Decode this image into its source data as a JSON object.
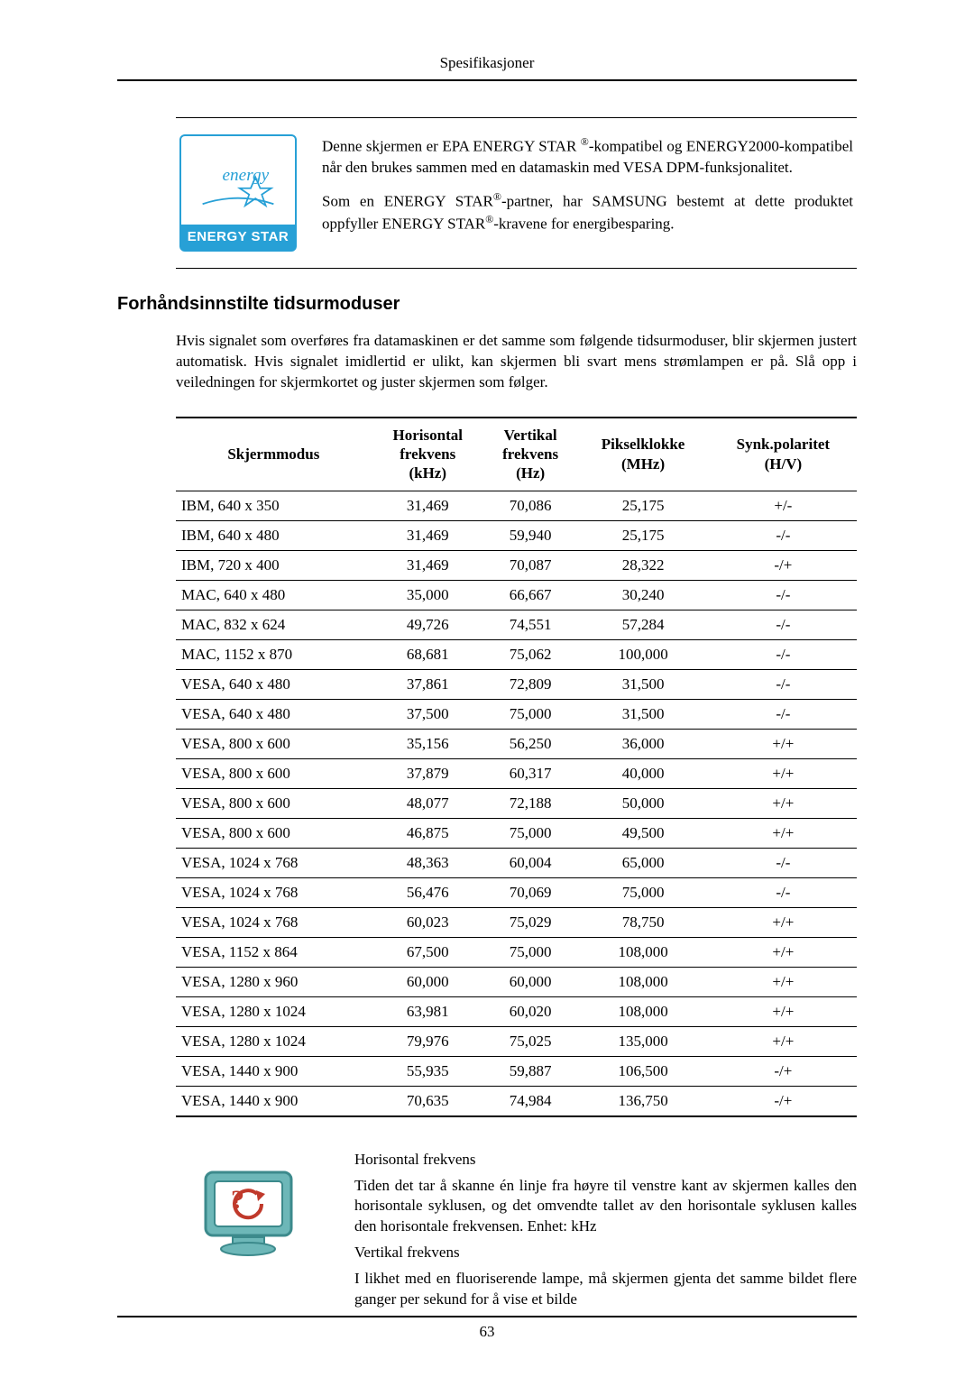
{
  "header_title": "Spesifikasjoner",
  "energy_logo_top": "energy",
  "energy_logo_bottom": "ENERGY STAR",
  "energy_paragraph1_a": "Denne skjermen er EPA ENERGY STAR ",
  "sup_r": "®",
  "energy_paragraph1_b": "-kompatibel og ENERGY2000-kompatibel når den brukes sammen med en datamaskin med VESA DPM-funksjonalitet.",
  "energy_paragraph2_a": "Som en ENERGY STAR",
  "energy_paragraph2_b": "-partner, har SAMSUNG bestemt at dette produktet oppfyller ENERGY STAR",
  "energy_paragraph2_c": "-kravene for energibesparing.",
  "section_heading": "Forhåndsinnstilte tidsurmoduser",
  "intro_text": "Hvis signalet som overføres fra datamaskinen er det samme som følgende tidsurmoduser, blir skjermen justert automatisk. Hvis signalet imidlertid er ulikt, kan skjermen bli svart mens strømlampen er på. Slå opp i veiledningen for skjermkortet og juster skjermen som følger.",
  "table": {
    "headers": {
      "c1": "Skjermmodus",
      "c2a": "Horisontal",
      "c2b": "frekvens",
      "c2c": "(kHz)",
      "c3a": "Vertikal",
      "c3b": "frekvens",
      "c3c": "(Hz)",
      "c4a": "Pikselklokke",
      "c4b": "(MHz)",
      "c5a": "Synk.polaritet",
      "c5b": "(H/V)"
    },
    "rows": [
      {
        "c1": "IBM, 640 x 350",
        "c2": "31,469",
        "c3": "70,086",
        "c4": "25,175",
        "c5": "+/-"
      },
      {
        "c1": "IBM, 640 x 480",
        "c2": "31,469",
        "c3": "59,940",
        "c4": "25,175",
        "c5": "-/-"
      },
      {
        "c1": "IBM, 720 x 400",
        "c2": "31,469",
        "c3": "70,087",
        "c4": "28,322",
        "c5": "-/+"
      },
      {
        "c1": "MAC, 640 x 480",
        "c2": "35,000",
        "c3": "66,667",
        "c4": "30,240",
        "c5": "-/-"
      },
      {
        "c1": "MAC, 832 x 624",
        "c2": "49,726",
        "c3": "74,551",
        "c4": "57,284",
        "c5": "-/-"
      },
      {
        "c1": "MAC, 1152 x 870",
        "c2": "68,681",
        "c3": "75,062",
        "c4": "100,000",
        "c5": "-/-"
      },
      {
        "c1": "VESA, 640 x 480",
        "c2": "37,861",
        "c3": "72,809",
        "c4": "31,500",
        "c5": "-/-"
      },
      {
        "c1": "VESA, 640 x 480",
        "c2": "37,500",
        "c3": "75,000",
        "c4": "31,500",
        "c5": "-/-"
      },
      {
        "c1": "VESA, 800 x 600",
        "c2": "35,156",
        "c3": "56,250",
        "c4": "36,000",
        "c5": "+/+"
      },
      {
        "c1": "VESA, 800 x 600",
        "c2": "37,879",
        "c3": "60,317",
        "c4": "40,000",
        "c5": "+/+"
      },
      {
        "c1": "VESA, 800 x 600",
        "c2": "48,077",
        "c3": "72,188",
        "c4": "50,000",
        "c5": "+/+"
      },
      {
        "c1": "VESA, 800 x 600",
        "c2": "46,875",
        "c3": "75,000",
        "c4": "49,500",
        "c5": "+/+"
      },
      {
        "c1": "VESA, 1024 x 768",
        "c2": "48,363",
        "c3": "60,004",
        "c4": "65,000",
        "c5": "-/-"
      },
      {
        "c1": "VESA, 1024 x 768",
        "c2": "56,476",
        "c3": "70,069",
        "c4": "75,000",
        "c5": "-/-"
      },
      {
        "c1": "VESA, 1024 x 768",
        "c2": "60,023",
        "c3": "75,029",
        "c4": "78,750",
        "c5": "+/+"
      },
      {
        "c1": "VESA, 1152 x 864",
        "c2": "67,500",
        "c3": "75,000",
        "c4": "108,000",
        "c5": "+/+"
      },
      {
        "c1": "VESA, 1280 x 960",
        "c2": "60,000",
        "c3": "60,000",
        "c4": "108,000",
        "c5": "+/+"
      },
      {
        "c1": "VESA, 1280 x 1024",
        "c2": "63,981",
        "c3": "60,020",
        "c4": "108,000",
        "c5": "+/+"
      },
      {
        "c1": "VESA, 1280 x 1024",
        "c2": "79,976",
        "c3": "75,025",
        "c4": "135,000",
        "c5": "+/+"
      },
      {
        "c1": "VESA, 1440 x 900",
        "c2": "55,935",
        "c3": "59,887",
        "c4": "106,500",
        "c5": "-/+"
      },
      {
        "c1": "VESA, 1440 x 900",
        "c2": "70,635",
        "c3": "74,984",
        "c4": "136,750",
        "c5": "-/+"
      }
    ]
  },
  "h_freq_label": "Horisontal frekvens",
  "h_freq_text": "Tiden det tar å skanne én linje fra høyre til venstre kant av skjermen kalles den horisontale syklusen, og det omvendte tallet av den horisontale syklusen kalles den horisontale frekvensen. Enhet: kHz",
  "v_freq_label": "Vertikal frekvens",
  "v_freq_text": "I likhet med en fluoriserende lampe, må skjermen gjenta det samme bildet flere ganger per sekund for å vise et bilde",
  "page_number": "63"
}
